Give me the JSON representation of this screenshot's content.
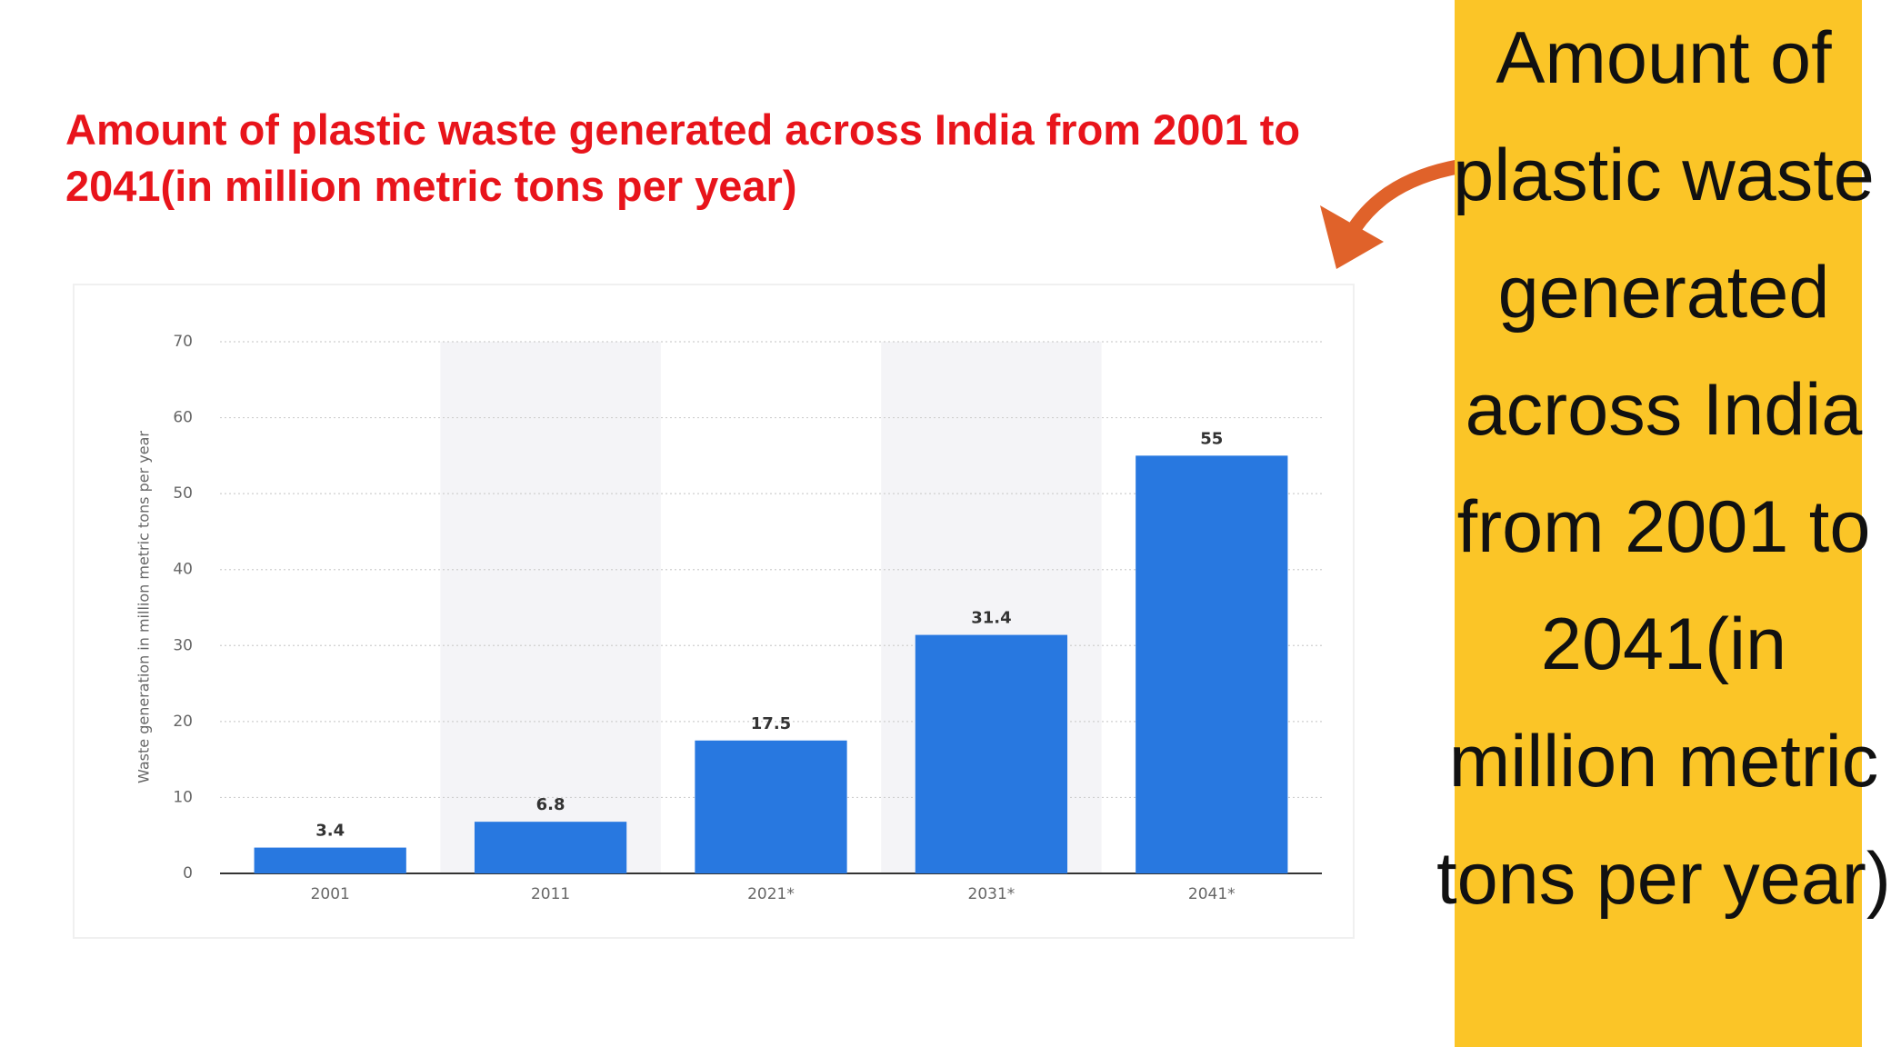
{
  "chart_data": {
    "type": "bar",
    "title": "Amount of plastic waste generated across India from 2001 to 2041(in million metric tons per year)",
    "side_note": "Amount of plastic waste generated across India from 2001 to 2041(in million metric tons per year)",
    "ylabel": "Waste generation in million metric tons per year",
    "categories": [
      "2001",
      "2011",
      "2021*",
      "2031*",
      "2041*"
    ],
    "values": [
      3.4,
      6.8,
      17.5,
      31.4,
      55
    ],
    "color": "#2878e0",
    "ylim": [
      0,
      70
    ],
    "yticks": [
      0,
      10,
      20,
      30,
      40,
      50,
      60,
      70
    ],
    "grid": true
  }
}
